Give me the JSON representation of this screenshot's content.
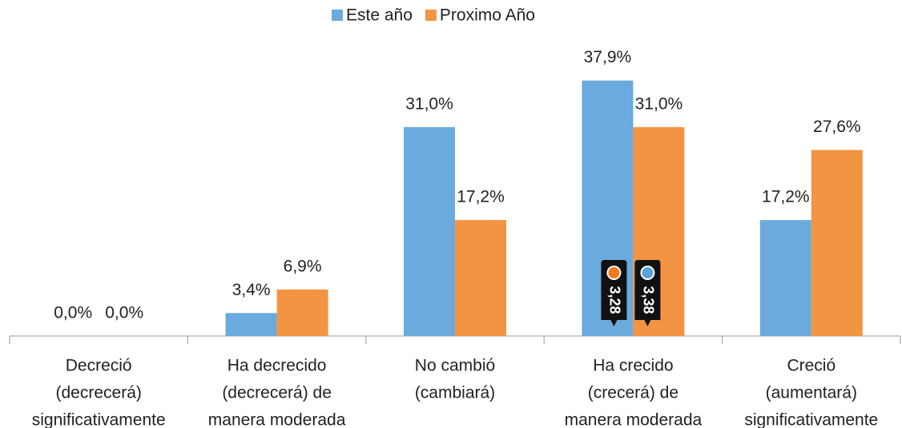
{
  "chart_data": {
    "type": "bar",
    "categories": [
      [
        "Decreció",
        "(decrecerá)",
        "significativamente"
      ],
      [
        "Ha decrecido",
        "(decrecerá) de",
        "manera moderada"
      ],
      [
        "No cambió",
        "(cambiará)"
      ],
      [
        "Ha crecido",
        "(crecerá) de",
        "manera moderada"
      ],
      [
        "Creció",
        "(aumentará)",
        "significativamente"
      ]
    ],
    "series": [
      {
        "name": "Este año",
        "color": "#6aaadc",
        "values": [
          0.0,
          3.4,
          31.0,
          37.9,
          17.2
        ],
        "value_labels": [
          "0,0%",
          "3,4%",
          "31,0%",
          "37,9%",
          "17,2%"
        ]
      },
      {
        "name": "Proximo Año",
        "color": "#f39443",
        "values": [
          0.0,
          6.9,
          17.2,
          31.0,
          27.6
        ],
        "value_labels": [
          "0,0%",
          "6,9%",
          "17,2%",
          "31,0%",
          "27,6%"
        ]
      }
    ],
    "ylim": [
      0,
      40
    ],
    "legend": "top",
    "annotations": [
      {
        "text": "3,28",
        "color": "#f47a20",
        "category": 3
      },
      {
        "text": "3,38",
        "color": "#5aa2d8",
        "category": 3
      }
    ]
  }
}
